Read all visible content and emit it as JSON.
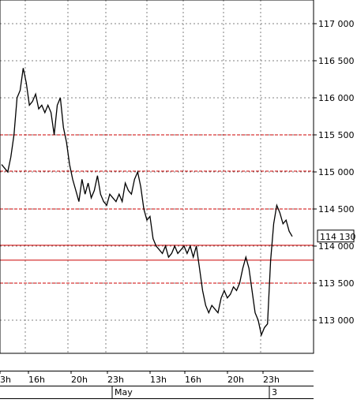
{
  "chart_data": {
    "type": "line",
    "title": "",
    "xlabel": "",
    "ylabel": "",
    "ylim": [
      112650,
      117200
    ],
    "y_ticks": [
      {
        "value": 117000,
        "label": "117 000"
      },
      {
        "value": 116500,
        "label": "116 500"
      },
      {
        "value": 116000,
        "label": "116 000"
      },
      {
        "value": 115500,
        "label": "115 500"
      },
      {
        "value": 115000,
        "label": "115 000"
      },
      {
        "value": 114500,
        "label": "114 500"
      },
      {
        "value": 114000,
        "label": "114 000"
      },
      {
        "value": 113500,
        "label": "113 500"
      },
      {
        "value": 113000,
        "label": "113 000"
      }
    ],
    "time_ticks": [
      "3h",
      "16h",
      "20h",
      "23h",
      "13h",
      "16h",
      "20h",
      "23h"
    ],
    "date_labels": [
      "May",
      "3"
    ],
    "grid": true,
    "last_price": {
      "value": 114130,
      "label": "114 130"
    },
    "horizontal_levels": [
      {
        "value": 115500,
        "style": "dashed"
      },
      {
        "value": 115010,
        "style": "dashed"
      },
      {
        "value": 114500,
        "style": "dashed"
      },
      {
        "value": 114010,
        "style": "solid"
      },
      {
        "value": 113810,
        "style": "solid"
      },
      {
        "value": 113500,
        "style": "dashed"
      }
    ],
    "series": [
      {
        "values": [
          115100,
          115050,
          115000,
          115200,
          115500,
          116000,
          116100,
          116400,
          116200,
          115900,
          115950,
          116050,
          115850,
          115900,
          115800,
          115900,
          115800,
          115500,
          115900,
          116000,
          115600,
          115400,
          115100,
          114900,
          114750,
          114600,
          114900,
          114700,
          114850,
          114650,
          114750,
          114950,
          114700,
          114600,
          114550,
          114700,
          114650,
          114600,
          114700,
          114600,
          114850,
          114750,
          114700,
          114900,
          115000,
          114800,
          114500,
          114350,
          114400,
          114100,
          114000,
          113950,
          113900,
          114000,
          113850,
          113900,
          114000,
          113900,
          113950,
          114000,
          113900,
          114000,
          113850,
          114000,
          113700,
          113400,
          113200,
          113100,
          113200,
          113150,
          113100,
          113300,
          113400,
          113300,
          113350,
          113450,
          113400,
          113500,
          113700,
          113850,
          113700,
          113400,
          113100,
          113000,
          112800,
          112900,
          112950,
          113800,
          114300,
          114550,
          114450,
          114300,
          114350,
          114200,
          114130
        ]
      }
    ],
    "colors": {
      "series": "#000000",
      "level": "#cc0000",
      "grid": "#808080"
    }
  }
}
